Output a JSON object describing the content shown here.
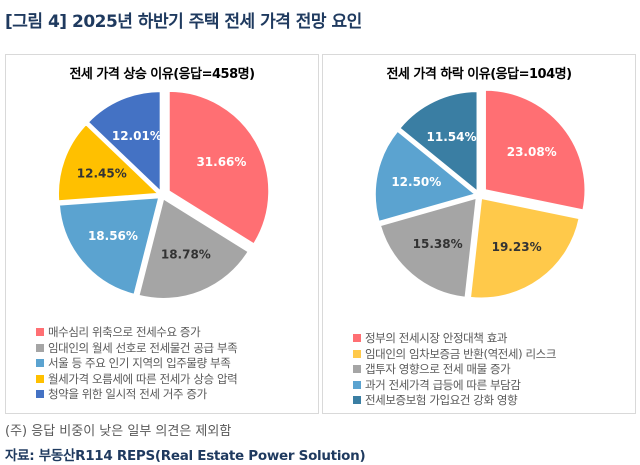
{
  "title": "[그림 4] 2025년 하반기 주택 전세 가격 전망 요인",
  "note": "(주) 응답 비중이 낮은 일부 의견은 제외함",
  "source": "자료: 부동산R114 REPS(Real Estate Power Solution)",
  "chart_data": [
    {
      "type": "pie",
      "title": "전세 가격 상승 이유(응답=458명)",
      "categories": [
        "매수심리 위축으로 전세수요 증가",
        "임대인의 월세 선호로 전세물건 공급 부족",
        "서울 등 주요 인기 지역의 입주물량 부족",
        "월세가격 오름세에 따른 전세가 상승 압력",
        "청약을 위한 일시적 전세 거주 증가"
      ],
      "values": [
        31.66,
        18.78,
        18.56,
        12.45,
        12.01
      ],
      "labels": [
        "31.66%",
        "18.78%",
        "18.56%",
        "12.45%",
        "12.01%"
      ],
      "colors": [
        "#FF6F73",
        "#A5A5A5",
        "#5BA3D0",
        "#FFC000",
        "#4472C4"
      ],
      "legend": "bottom"
    },
    {
      "type": "pie",
      "title": "전세 가격 하락 이유(응답=104명)",
      "categories": [
        "정부의 전세시장 안정대책 효과",
        "임대인의 임차보증금 반환(역전세) 리스크",
        "갭투자 영향으로 전세 매물 증가",
        "과거 전세가격 급등에 따른 부담감",
        "전세보증보험 가입요건 강화 영향"
      ],
      "values": [
        23.08,
        19.23,
        15.38,
        12.5,
        11.54
      ],
      "labels": [
        "23.08%",
        "19.23%",
        "15.38%",
        "12.50%",
        "11.54%"
      ],
      "colors": [
        "#FF6F73",
        "#FFC94A",
        "#A5A5A5",
        "#5BA3D0",
        "#3A7EA3"
      ],
      "legend": "bottom"
    }
  ]
}
